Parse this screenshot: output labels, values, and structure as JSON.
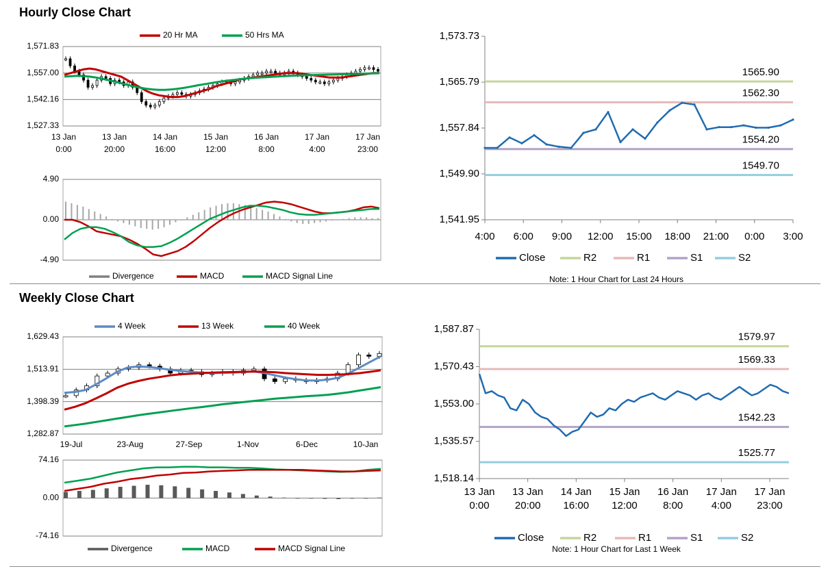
{
  "hourly": {
    "title": "Hourly Close Chart",
    "price_chart": {
      "type": "candlestick",
      "legend": [
        {
          "label": "20 Hr MA",
          "color": "#c00000"
        },
        {
          "label": "50 Hrs MA",
          "color": "#00a050"
        }
      ],
      "y_ticks": [
        "1,571.83",
        "1,557.00",
        "1,542.16",
        "1,527.33"
      ],
      "ylim": [
        1527.33,
        1571.83
      ],
      "x_ticks": [
        {
          "date": "13 Jan",
          "time": "0:00"
        },
        {
          "date": "13 Jan",
          "time": "20:00"
        },
        {
          "date": "14 Jan",
          "time": "16:00"
        },
        {
          "date": "15 Jan",
          "time": "12:00"
        },
        {
          "date": "16 Jan",
          "time": "8:00"
        },
        {
          "date": "17 Jan",
          "time": "4:00"
        },
        {
          "date": "17 Jan",
          "time": "23:00"
        }
      ],
      "close": [
        1565,
        1561,
        1558,
        1556,
        1553,
        1549,
        1550,
        1553,
        1555,
        1554,
        1551,
        1553,
        1552,
        1550,
        1552,
        1549,
        1546,
        1541,
        1539,
        1538,
        1539,
        1541,
        1543,
        1544,
        1545,
        1546,
        1545,
        1544,
        1545,
        1546,
        1547,
        1548,
        1549,
        1550,
        1551,
        1552,
        1552,
        1551,
        1552,
        1553,
        1554,
        1555,
        1556,
        1557,
        1557,
        1558,
        1558,
        1557,
        1556,
        1557,
        1558,
        1557,
        1556,
        1555,
        1554,
        1553,
        1552,
        1552,
        1551,
        1552,
        1553,
        1554,
        1555,
        1556,
        1557,
        1558,
        1559,
        1560,
        1560,
        1559,
        1558
      ],
      "ma20": [
        1556,
        1557,
        1558,
        1559,
        1559.5,
        1559,
        1558,
        1557,
        1556,
        1555,
        1553,
        1551,
        1549,
        1547,
        1545.5,
        1544.5,
        1544,
        1543.5,
        1543.5,
        1544,
        1545,
        1546,
        1547,
        1548,
        1549.5,
        1550.5,
        1551.5,
        1552.5,
        1553.5,
        1554,
        1554.5,
        1555,
        1555.5,
        1556,
        1556.5,
        1557,
        1557,
        1557,
        1556.5,
        1556,
        1555.5,
        1555,
        1554.5,
        1554.5,
        1554.5,
        1555,
        1555.5,
        1556,
        1556.5,
        1557,
        1557
      ],
      "ma50": [
        1555,
        1555.2,
        1555.4,
        1555.3,
        1555,
        1554.5,
        1553.8,
        1553,
        1552.2,
        1551.3,
        1550.4,
        1549.5,
        1548.8,
        1548.2,
        1547.8,
        1547.6,
        1547.6,
        1547.8,
        1548.2,
        1548.7,
        1549.3,
        1550,
        1550.6,
        1551.2,
        1551.8,
        1552.3,
        1552.8,
        1553.2,
        1553.6,
        1554,
        1554.3,
        1554.5,
        1554.7,
        1554.9,
        1555.1,
        1555.3,
        1555.5,
        1555.6,
        1555.7,
        1555.8,
        1555.9,
        1556,
        1556.1,
        1556.2,
        1556.3,
        1556.4,
        1556.5,
        1556.6,
        1556.7,
        1556.8,
        1556.9
      ]
    },
    "macd_chart": {
      "type": "bar+line",
      "y_ticks": [
        "4.90",
        "0.00",
        "-4.90"
      ],
      "ylim": [
        -4.9,
        4.9
      ],
      "legend": [
        {
          "label": "Divergence",
          "color": "#808080"
        },
        {
          "label": "MACD",
          "color": "#c00000"
        },
        {
          "label": "MACD Signal Line",
          "color": "#00a050"
        }
      ],
      "divergence": [
        2.2,
        2,
        1.8,
        1.6,
        1.3,
        1,
        0.7,
        0.4,
        0.1,
        -0.2,
        -0.4,
        -0.6,
        -0.8,
        -1,
        -1.1,
        -1.2,
        -1.1,
        -0.9,
        -0.6,
        -0.3,
        0,
        0.3,
        0.6,
        0.9,
        1.2,
        1.5,
        1.7,
        1.9,
        2,
        2,
        1.9,
        1.8,
        1.6,
        1.4,
        1.2,
        1,
        0.7,
        0.4,
        0.1,
        -0.2,
        -0.4,
        -0.5,
        -0.5,
        -0.4,
        -0.3,
        -0.2,
        -0.1,
        0,
        0.1,
        0.2,
        0.3,
        0.3,
        0.3,
        0.2,
        0.2
      ],
      "macd": [
        0,
        0,
        -0.3,
        -0.8,
        -1.4,
        -1.6,
        -1.8,
        -2,
        -2.4,
        -2.9,
        -3.5,
        -4.2,
        -4.4,
        -4.1,
        -3.8,
        -3.3,
        -2.6,
        -1.8,
        -1,
        -0.3,
        0.3,
        0.8,
        1.2,
        1.5,
        1.8,
        2.1,
        2.2,
        2.1,
        1.9,
        1.6,
        1.3,
        1,
        0.8,
        0.8,
        0.9,
        1,
        1.2,
        1.5,
        1.6,
        1.4
      ],
      "signal": [
        -2.4,
        -1.6,
        -1.1,
        -0.9,
        -0.9,
        -1.1,
        -1.5,
        -2,
        -2.7,
        -3.1,
        -3.3,
        -3.3,
        -3.2,
        -2.8,
        -2.3,
        -1.7,
        -1.1,
        -0.5,
        0.1,
        0.5,
        0.9,
        1.2,
        1.5,
        1.7,
        1.7,
        1.6,
        1.4,
        1.2,
        0.9,
        0.7,
        0.6,
        0.6,
        0.7,
        0.8,
        0.9,
        1,
        1.1,
        1.2,
        1.3,
        1.3
      ]
    },
    "pivot_chart": {
      "type": "line",
      "y_ticks": [
        "1,573.73",
        "1,565.79",
        "1,557.84",
        "1,549.90",
        "1,541.95"
      ],
      "ylim": [
        1541.95,
        1573.73
      ],
      "x_ticks": [
        "4:00",
        "6:00",
        "9:00",
        "12:00",
        "15:00",
        "18:00",
        "21:00",
        "0:00",
        "3:00"
      ],
      "close": [
        1554.4,
        1554.4,
        1556.2,
        1555.2,
        1556.6,
        1555,
        1554.6,
        1554.4,
        1557,
        1557.6,
        1560.6,
        1555.4,
        1557.6,
        1556,
        1558.8,
        1560.9,
        1562.2,
        1561.9,
        1557.6,
        1558,
        1558,
        1558.3,
        1557.9,
        1557.9,
        1558.3,
        1559.3
      ],
      "levels": [
        {
          "name": "R2",
          "value": 1565.9,
          "label": "1565.90",
          "color": "#c3d69b"
        },
        {
          "name": "R1",
          "value": 1562.3,
          "label": "1562.30",
          "color": "#e6b9b8"
        },
        {
          "name": "S1",
          "value": 1554.2,
          "label": "1554.20",
          "color": "#b3a2c7"
        },
        {
          "name": "S2",
          "value": 1549.7,
          "label": "1549.70",
          "color": "#93cddd"
        }
      ],
      "legend": [
        {
          "label": "Close",
          "color": "#1f6bb0"
        },
        {
          "label": "R2",
          "color": "#c3d69b"
        },
        {
          "label": "R1",
          "color": "#e6b9b8"
        },
        {
          "label": "S1",
          "color": "#b3a2c7"
        },
        {
          "label": "S2",
          "color": "#93cddd"
        }
      ],
      "note": "Note: 1 Hour Chart for Last 24 Hours"
    }
  },
  "weekly": {
    "title": "Weekly Close Chart",
    "price_chart": {
      "type": "candlestick",
      "legend": [
        {
          "label": "4 Week",
          "color": "#5b8bc4"
        },
        {
          "label": "13 Week",
          "color": "#c00000"
        },
        {
          "label": "40 Week",
          "color": "#00a050"
        }
      ],
      "y_ticks": [
        "1,629.43",
        "1,513.91",
        "1,398.39",
        "1,282.87"
      ],
      "ylim": [
        1282.87,
        1629.43
      ],
      "x_ticks": [
        "19-Jul",
        "23-Aug",
        "27-Sep",
        "1-Nov",
        "6-Dec",
        "10-Jan"
      ],
      "close": [
        1420,
        1440,
        1455,
        1490,
        1500,
        1515,
        1520,
        1530,
        1525,
        1515,
        1500,
        1510,
        1505,
        1495,
        1500,
        1505,
        1500,
        1510,
        1515,
        1480,
        1470,
        1480,
        1475,
        1470,
        1475,
        1480,
        1500,
        1530,
        1565,
        1560,
        1570
      ],
      "ma4": [
        1430,
        1433,
        1440,
        1460,
        1482,
        1505,
        1520,
        1524,
        1522,
        1518,
        1512,
        1508,
        1505,
        1502,
        1500,
        1501,
        1502,
        1504,
        1506,
        1500,
        1492,
        1484,
        1478,
        1474,
        1474,
        1477,
        1484,
        1500,
        1520,
        1540,
        1560
      ],
      "ma13": [
        1370,
        1380,
        1393,
        1410,
        1428,
        1448,
        1462,
        1472,
        1480,
        1486,
        1492,
        1496,
        1498,
        1500,
        1502,
        1503,
        1504,
        1505,
        1506,
        1505,
        1503,
        1500,
        1498,
        1496,
        1494,
        1494,
        1495,
        1497,
        1500,
        1505,
        1510
      ],
      "ma40": [
        1310,
        1315,
        1320,
        1326,
        1332,
        1338,
        1344,
        1350,
        1355,
        1360,
        1365,
        1370,
        1375,
        1379,
        1384,
        1389,
        1393,
        1397,
        1401,
        1405,
        1409,
        1412,
        1415,
        1418,
        1420,
        1423,
        1427,
        1432,
        1438,
        1444,
        1450
      ]
    },
    "macd_chart": {
      "type": "bar+line",
      "y_ticks": [
        "74.16",
        "0.00",
        "-74.16"
      ],
      "ylim": [
        -74.16,
        74.16
      ],
      "legend": [
        {
          "label": "Divergence",
          "color": "#595959"
        },
        {
          "label": "MACD",
          "color": "#00a050"
        },
        {
          "label": "MACD Signal Line",
          "color": "#c00000"
        }
      ],
      "divergence": [
        12,
        14,
        16,
        19,
        22,
        24,
        26,
        25,
        23,
        20,
        17,
        14,
        11,
        8,
        5,
        3,
        1,
        0,
        -1,
        -1.5,
        -2,
        -1,
        0,
        1
      ],
      "macd": [
        30,
        34,
        38,
        44,
        50,
        54,
        58,
        60,
        60,
        61,
        61,
        60,
        60,
        59,
        59,
        58,
        56,
        55,
        54,
        53,
        52,
        51,
        52,
        55,
        57
      ],
      "signal": [
        14,
        18,
        22,
        28,
        32,
        37,
        40,
        44,
        46,
        49,
        50,
        52,
        53,
        54,
        55,
        55,
        55,
        55,
        55,
        54,
        53,
        52,
        52,
        53,
        54
      ]
    },
    "pivot_chart": {
      "type": "line",
      "y_ticks": [
        "1,587.87",
        "1,570.43",
        "1,553.00",
        "1,535.57",
        "1,518.14"
      ],
      "ylim": [
        1518.14,
        1587.87
      ],
      "x_ticks": [
        {
          "date": "13 Jan",
          "time": "0:00"
        },
        {
          "date": "13 Jan",
          "time": "20:00"
        },
        {
          "date": "14 Jan",
          "time": "16:00"
        },
        {
          "date": "15 Jan",
          "time": "12:00"
        },
        {
          "date": "16 Jan",
          "time": "8:00"
        },
        {
          "date": "17 Jan",
          "time": "4:00"
        },
        {
          "date": "17 Jan",
          "time": "23:00"
        }
      ],
      "close": [
        1567,
        1558,
        1559,
        1557,
        1556,
        1551,
        1550,
        1555,
        1553,
        1549,
        1547,
        1546,
        1543,
        1541,
        1538,
        1540,
        1541,
        1545,
        1549,
        1547,
        1548,
        1551,
        1550,
        1553,
        1555,
        1554,
        1556,
        1557,
        1558,
        1556,
        1555,
        1557,
        1559,
        1558,
        1557,
        1555,
        1557,
        1558,
        1556,
        1555,
        1557,
        1559,
        1561,
        1559,
        1557,
        1558,
        1560,
        1562,
        1561,
        1559,
        1558
      ],
      "levels": [
        {
          "name": "R2",
          "value": 1579.97,
          "label": "1579.97",
          "color": "#c3d69b"
        },
        {
          "name": "R1",
          "value": 1569.33,
          "label": "1569.33",
          "color": "#e6b9b8"
        },
        {
          "name": "S1",
          "value": 1542.23,
          "label": "1542.23",
          "color": "#b3a2c7"
        },
        {
          "name": "S2",
          "value": 1525.77,
          "label": "1525.77",
          "color": "#93cddd"
        }
      ],
      "legend": [
        {
          "label": "Close",
          "color": "#1f6bb0"
        },
        {
          "label": "R2",
          "color": "#c3d69b"
        },
        {
          "label": "R1",
          "color": "#e6b9b8"
        },
        {
          "label": "S1",
          "color": "#b3a2c7"
        },
        {
          "label": "S2",
          "color": "#93cddd"
        }
      ],
      "note": "Note: 1 Hour Chart for Last 1 Week"
    }
  }
}
